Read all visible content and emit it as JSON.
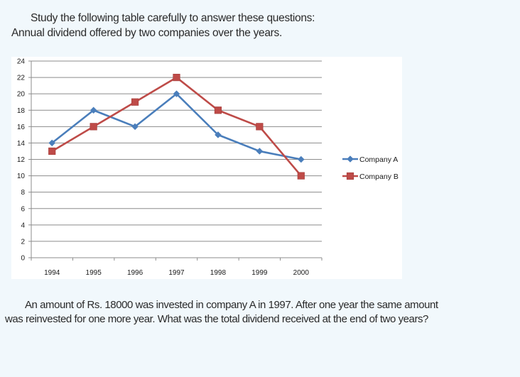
{
  "intro": {
    "line1": "Study the following table carefully to answer these questions:",
    "line2": "Annual dividend offered by two companies over the years."
  },
  "question": {
    "line1": "An amount of Rs. 18000 was invested in company A in 1997. After one year the same amount",
    "line2": "was reinvested for one more year. What was the total dividend received at the end of two years?"
  },
  "chart_data": {
    "type": "line",
    "title": "",
    "xlabel": "",
    "ylabel": "",
    "categories": [
      "1994",
      "1995",
      "1996",
      "1997",
      "1998",
      "1999",
      "2000"
    ],
    "ylim": [
      0,
      24
    ],
    "yticks": [
      0,
      2,
      4,
      6,
      8,
      10,
      12,
      14,
      16,
      18,
      20,
      22,
      24
    ],
    "grid": true,
    "legend_position": "right",
    "series": [
      {
        "name": "Company A",
        "marker": "diamond",
        "color": "#4a7ebb",
        "values": [
          14,
          18,
          16,
          20,
          15,
          13,
          12
        ]
      },
      {
        "name": "Company B",
        "marker": "square",
        "color": "#be4b48",
        "values": [
          13,
          16,
          19,
          22,
          18,
          16,
          10
        ]
      }
    ]
  }
}
